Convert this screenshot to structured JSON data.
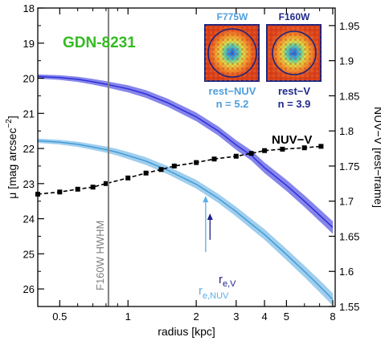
{
  "chart_data": {
    "type": "line",
    "title": "GDN-8231",
    "xlabel": "radius [kpc]",
    "ylabel_left": "μ [mag arcsec⁻²]",
    "ylabel_left_main": "μ [mag arcsec",
    "ylabel_left_sup": "−2",
    "ylabel_left_close": "]",
    "ylabel_right": "NUV−V [rest−frame]",
    "x_scale": "log",
    "xlim": [
      0.4,
      8.2
    ],
    "ylim_left": [
      26.5,
      18
    ],
    "ylim_right": [
      1.55,
      1.975
    ],
    "x_ticks": [
      0.5,
      1,
      2,
      3,
      4,
      5,
      8
    ],
    "x_tick_labels": [
      "0.5",
      "1",
      "2",
      "3",
      "4",
      "5",
      "8"
    ],
    "y_left_ticks": [
      18,
      19,
      20,
      21,
      22,
      23,
      24,
      25,
      26
    ],
    "y_left_tick_labels": [
      "18",
      "19",
      "20",
      "21",
      "22",
      "23",
      "24",
      "25",
      "26"
    ],
    "y_right_ticks": [
      1.55,
      1.6,
      1.65,
      1.7,
      1.75,
      1.8,
      1.85,
      1.9,
      1.95
    ],
    "y_right_tick_labels": [
      "1.55",
      "1.6",
      "1.65",
      "1.7",
      "1.75",
      "1.8",
      "1.85",
      "1.9",
      "1.95"
    ],
    "series": [
      {
        "name": "rest−V",
        "axis": "left",
        "color": "#2a2ad8",
        "band_color": "#7070e8",
        "x": [
          0.4,
          0.5,
          0.6,
          0.7,
          0.8,
          0.9,
          1.0,
          1.2,
          1.5,
          2.0,
          2.5,
          3.0,
          3.5,
          4.0,
          5.0,
          6.0,
          7.0,
          8.0
        ],
        "values": [
          19.95,
          19.98,
          20.03,
          20.1,
          20.17,
          20.24,
          20.3,
          20.45,
          20.7,
          21.1,
          21.5,
          21.9,
          22.2,
          22.55,
          23.05,
          23.5,
          23.9,
          24.25
        ]
      },
      {
        "name": "rest−NUV",
        "axis": "left",
        "color": "#3d9ad6",
        "band_color": "#8fc6ea",
        "x": [
          0.4,
          0.5,
          0.6,
          0.7,
          0.8,
          0.9,
          1.0,
          1.2,
          1.5,
          2.0,
          2.5,
          3.0,
          3.5,
          4.0,
          5.0,
          6.0,
          7.0,
          8.0
        ],
        "values": [
          21.78,
          21.82,
          21.88,
          21.96,
          22.03,
          22.11,
          22.2,
          22.36,
          22.62,
          23.02,
          23.42,
          23.8,
          24.15,
          24.45,
          25.02,
          25.5,
          25.92,
          26.3
        ]
      },
      {
        "name": "NUV−V",
        "axis": "right",
        "color": "#000000",
        "x": [
          0.4,
          0.5,
          0.6,
          0.7,
          0.8,
          1.0,
          1.2,
          1.4,
          1.6,
          2.0,
          2.4,
          3.0,
          3.5,
          4.0,
          4.8,
          6.0,
          7.1
        ],
        "values": [
          1.71,
          1.713,
          1.717,
          1.72,
          1.725,
          1.733,
          1.74,
          1.745,
          1.75,
          1.755,
          1.76,
          1.764,
          1.768,
          1.772,
          1.774,
          1.776,
          1.778
        ]
      }
    ],
    "vline": {
      "x": 0.82,
      "label": "F160W   HWHM",
      "color": "#808080"
    },
    "arrows": [
      {
        "x": 2.2,
        "y_from": 24.95,
        "y_to": 23.35,
        "color": "#5aaee6"
      },
      {
        "x": 2.3,
        "y_from": 24.6,
        "y_to": 23.85,
        "color": "#1f1f8a"
      }
    ],
    "labels": {
      "nuv_v": "NUV−V",
      "re_v_main": "r",
      "re_v_sub": "e,V",
      "re_nuv_main": "r",
      "re_nuv_sub": "e,NUV"
    },
    "insets": [
      {
        "filter": "F775W",
        "band": "rest−NUV",
        "n_label": "n = 5.2",
        "color": "#4f9edc"
      },
      {
        "filter": "F160W",
        "band": "rest−V",
        "n_label": "n = 3.9",
        "color": "#1f2a8a"
      }
    ],
    "colors": {
      "title": "#33bb22",
      "frame": "#000000"
    }
  }
}
